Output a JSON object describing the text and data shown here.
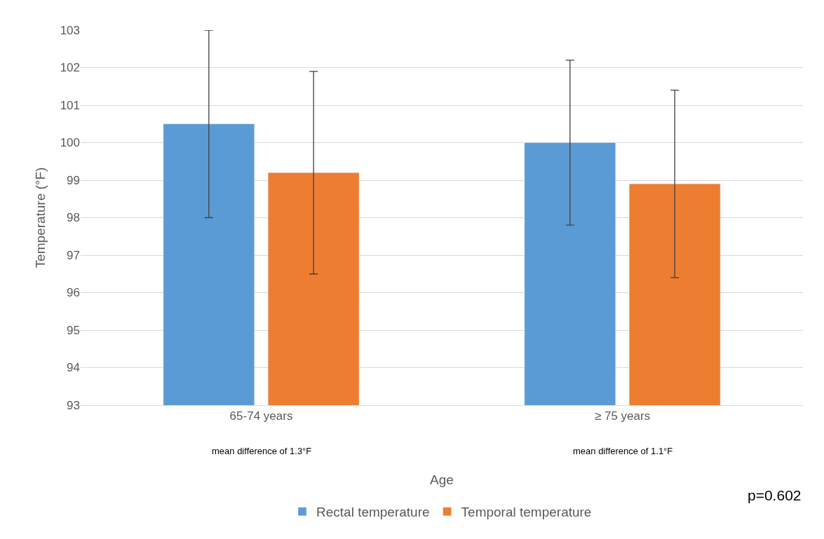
{
  "chart_data": {
    "type": "bar",
    "xlabel": "Age",
    "ylabel": "Temperature (°F)",
    "categories": [
      "65-74 years",
      "≥ 75 years"
    ],
    "series": [
      {
        "name": "Rectal temperature",
        "color": "#5b9bd5",
        "values": [
          100.5,
          100.0
        ],
        "errors": [
          2.5,
          2.2
        ]
      },
      {
        "name": "Temporal temperature",
        "color": "#ed7d31",
        "values": [
          99.2,
          98.9
        ],
        "errors": [
          2.7,
          2.5
        ]
      }
    ],
    "ylim": [
      93,
      103
    ],
    "yticks": [
      93,
      94,
      95,
      96,
      97,
      98,
      99,
      100,
      101,
      102,
      103
    ],
    "grid": "y",
    "legend": "bottom",
    "annotations": [
      "mean difference of 1.3°F",
      "mean difference of 1.1°F",
      "p=0.602"
    ]
  }
}
